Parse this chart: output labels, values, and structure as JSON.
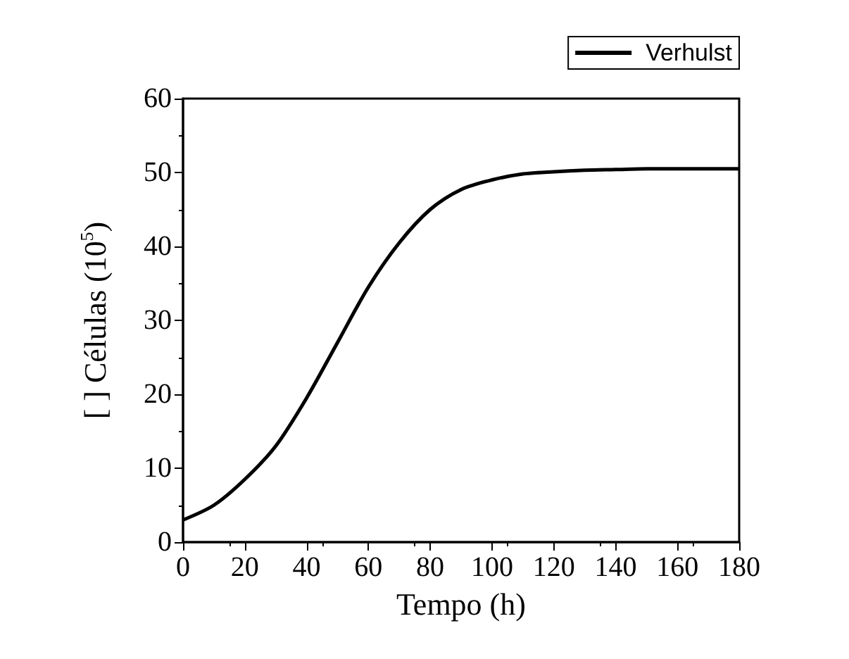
{
  "chart_data": {
    "type": "line",
    "xlabel": "Tempo (h)",
    "ylabel": "[ ] Células (10$^{5}$)",
    "x": [
      0,
      10,
      20,
      30,
      40,
      50,
      60,
      70,
      80,
      90,
      100,
      110,
      120,
      130,
      140,
      150,
      160,
      170,
      180
    ],
    "series": [
      {
        "name": "Verhulst",
        "color": "#000000",
        "values": [
          3,
          5,
          8.5,
          13,
          19.5,
          27,
          34.5,
          40.5,
          45,
          47.7,
          49,
          49.8,
          50.1,
          50.3,
          50.4,
          50.5,
          50.5,
          50.5,
          50.5
        ]
      }
    ],
    "xlim": [
      0,
      180
    ],
    "xticks": [
      0,
      20,
      40,
      60,
      80,
      100,
      120,
      140,
      160,
      180
    ],
    "ylim": [
      0,
      60
    ],
    "yticks": [
      0,
      10,
      20,
      30,
      40,
      50,
      60
    ],
    "legend": "top right",
    "grid": false,
    "marker": "none",
    "line_style": "solid"
  }
}
